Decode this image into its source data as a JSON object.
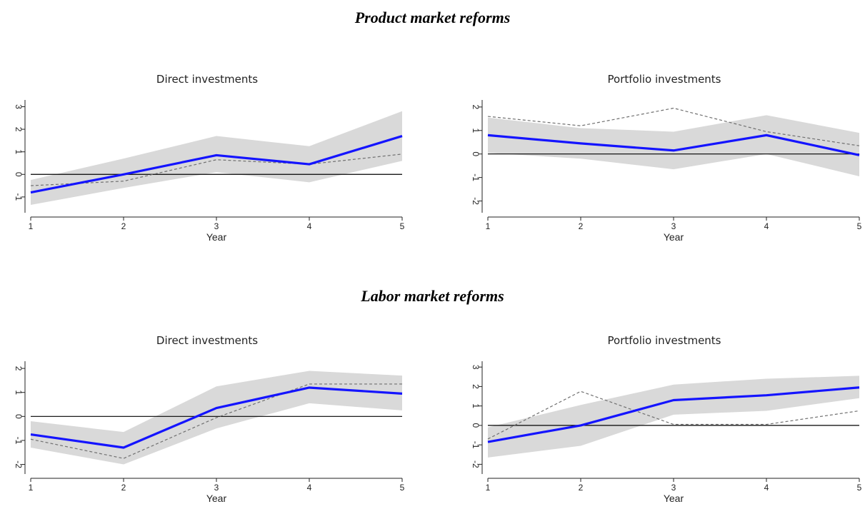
{
  "sections": {
    "product_title": "Product market reforms",
    "labor_title": "Labor market reforms"
  },
  "colors": {
    "main_line": "#1414ff",
    "band": "#d9d9d9",
    "dashed": "#707070",
    "zero_line": "#000000"
  },
  "chart_data": [
    {
      "type": "line",
      "section": "Product market reforms",
      "title": "Direct investments",
      "xlabel": "Year",
      "x": [
        1,
        2,
        3,
        4,
        5
      ],
      "xticks": [
        "1",
        "2",
        "3",
        "4",
        "5"
      ],
      "ylim": [
        -1.7,
        3.3
      ],
      "yticks": [
        -1,
        0,
        1,
        2,
        3
      ],
      "main": [
        -0.8,
        0.0,
        0.85,
        0.45,
        1.7
      ],
      "lower": [
        -1.35,
        -0.6,
        0.1,
        -0.35,
        0.6
      ],
      "upper": [
        -0.25,
        0.7,
        1.7,
        1.25,
        2.8
      ],
      "dashed": [
        -0.5,
        -0.3,
        0.65,
        0.45,
        0.9
      ],
      "zero": 0
    },
    {
      "type": "line",
      "section": "Product market reforms",
      "title": "Portfolio investments",
      "xlabel": "Year",
      "x": [
        1,
        2,
        3,
        4,
        5
      ],
      "xticks": [
        "1",
        "2",
        "3",
        "4",
        "5"
      ],
      "ylim": [
        -2.5,
        2.3
      ],
      "yticks": [
        -2,
        -1,
        0,
        1,
        2
      ],
      "main": [
        0.8,
        0.45,
        0.15,
        0.8,
        -0.05
      ],
      "lower": [
        0.05,
        -0.2,
        -0.65,
        0.0,
        -0.95
      ],
      "upper": [
        1.55,
        1.1,
        0.95,
        1.65,
        0.9
      ],
      "dashed": [
        1.6,
        1.2,
        1.95,
        0.95,
        0.35
      ],
      "zero": 0
    },
    {
      "type": "line",
      "section": "Labor market reforms",
      "title": "Direct investments",
      "xlabel": "Year",
      "x": [
        1,
        2,
        3,
        4,
        5
      ],
      "xticks": [
        "1",
        "2",
        "3",
        "4",
        "5"
      ],
      "ylim": [
        -2.4,
        2.3
      ],
      "yticks": [
        -2,
        -1,
        0,
        1,
        2
      ],
      "main": [
        -0.75,
        -1.3,
        0.35,
        1.2,
        0.95
      ],
      "lower": [
        -1.3,
        -2.0,
        -0.5,
        0.55,
        0.25
      ],
      "upper": [
        -0.2,
        -0.65,
        1.25,
        1.9,
        1.7
      ],
      "dashed": [
        -0.95,
        -1.75,
        -0.05,
        1.35,
        1.35
      ],
      "zero": 0
    },
    {
      "type": "line",
      "section": "Labor market reforms",
      "title": "Portfolio investments",
      "xlabel": "Year",
      "x": [
        1,
        2,
        3,
        4,
        5
      ],
      "xticks": [
        "1",
        "2",
        "3",
        "4",
        "5"
      ],
      "ylim": [
        -2.5,
        3.3
      ],
      "yticks": [
        -2,
        -1,
        0,
        1,
        2,
        3
      ],
      "main": [
        -0.85,
        0.0,
        1.3,
        1.55,
        1.95
      ],
      "lower": [
        -1.65,
        -1.05,
        0.55,
        0.75,
        1.4
      ],
      "upper": [
        -0.1,
        1.05,
        2.1,
        2.4,
        2.55
      ],
      "dashed": [
        -0.7,
        1.75,
        0.05,
        0.05,
        0.75
      ],
      "zero": 0
    }
  ]
}
